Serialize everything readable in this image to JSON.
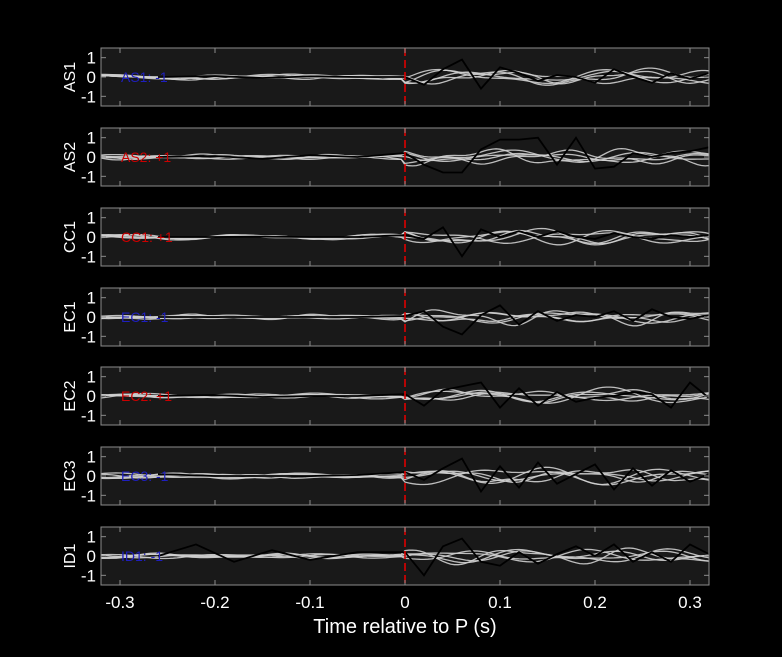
{
  "chart_data": {
    "type": "line",
    "xlabel": "Time relative to P (s)",
    "xlim": [
      -0.32,
      0.32
    ],
    "xticks": [
      -0.3,
      -0.2,
      -0.1,
      0,
      0.1,
      0.2,
      0.3
    ],
    "xtick_labels": [
      "-0.3",
      "-0.2",
      "-0.1",
      "0",
      "0.1",
      "0.2",
      "0.3"
    ],
    "ylim": [
      -1.5,
      1.5
    ],
    "yticks": [
      1,
      0,
      -1
    ],
    "ytick_labels": [
      "1",
      "0",
      "-1"
    ],
    "marker_x": 0,
    "colors": {
      "background": "#000000",
      "axes_face": "#191919",
      "axes_edge": "#8c8c8c",
      "trace": "#000000",
      "ensemble": "#cfcfcf",
      "marker": "#dd0000",
      "positive": "#cc0000",
      "negative": "#1f1fbf"
    },
    "panels": [
      {
        "ylabel": "AS1",
        "annotation": "AS1: -1",
        "polarity": "negative",
        "trace_x": [
          -0.26,
          -0.2,
          -0.15,
          -0.1,
          -0.05,
          0,
          0.02,
          0.04,
          0.06,
          0.08,
          0.1,
          0.12,
          0.14,
          0.16,
          0.18,
          0.2,
          0.22,
          0.24,
          0.26,
          0.28,
          0.3,
          0.32
        ],
        "trace_y": [
          0,
          0.05,
          -0.05,
          0.03,
          0,
          0,
          -0.4,
          0.4,
          0.9,
          -0.6,
          0.5,
          0.2,
          -0.2,
          0.1,
          0,
          -0.3,
          0.4,
          0,
          -0.3,
          0.2,
          -0.1,
          0.2
        ]
      },
      {
        "ylabel": "AS2",
        "annotation": "AS2: +1",
        "polarity": "positive",
        "trace_x": [
          -0.26,
          -0.2,
          -0.15,
          -0.1,
          -0.05,
          0,
          0.02,
          0.04,
          0.06,
          0.08,
          0.1,
          0.12,
          0.14,
          0.16,
          0.18,
          0.2,
          0.22,
          0.24,
          0.26,
          0.28,
          0.3,
          0.32
        ],
        "trace_y": [
          0,
          0.05,
          -0.1,
          0.1,
          0,
          0.2,
          -0.4,
          -0.8,
          -0.8,
          0.4,
          0.9,
          0.9,
          1.0,
          -0.4,
          1.0,
          -0.6,
          -0.5,
          0.2,
          0,
          0.2,
          0.3,
          0.5
        ]
      },
      {
        "ylabel": "CC1",
        "annotation": "CC1: +1",
        "polarity": "positive",
        "trace_x": [
          -0.26,
          -0.2,
          -0.15,
          -0.1,
          -0.05,
          0,
          0.02,
          0.04,
          0.06,
          0.08,
          0.1,
          0.12,
          0.14,
          0.16,
          0.18,
          0.2,
          0.22,
          0.24,
          0.26,
          0.28,
          0.3,
          0.32
        ],
        "trace_y": [
          0,
          0,
          0.02,
          0,
          0,
          0.1,
          -0.1,
          0.5,
          -1.0,
          0.4,
          0,
          0.3,
          0,
          0.3,
          0,
          -0.1,
          0.2,
          0,
          -0.1,
          0.1,
          0,
          0.1
        ]
      },
      {
        "ylabel": "EC1",
        "annotation": "EC1: -1",
        "polarity": "negative",
        "trace_x": [
          -0.26,
          -0.2,
          -0.15,
          -0.1,
          -0.05,
          0,
          0.02,
          0.04,
          0.06,
          0.08,
          0.1,
          0.12,
          0.14,
          0.16,
          0.18,
          0.2,
          0.22,
          0.24,
          0.26,
          0.28,
          0.3,
          0.32
        ],
        "trace_y": [
          0,
          0,
          0,
          0,
          0,
          0.05,
          0.3,
          -0.5,
          -0.9,
          0.1,
          0.6,
          -0.4,
          0.3,
          -0.2,
          0.1,
          0,
          0.3,
          -0.2,
          0.4,
          0,
          -0.1,
          0.1
        ]
      },
      {
        "ylabel": "EC2",
        "annotation": "EC2: +1",
        "polarity": "positive",
        "trace_x": [
          -0.26,
          -0.2,
          -0.15,
          -0.1,
          -0.05,
          0,
          0.02,
          0.04,
          0.06,
          0.08,
          0.1,
          0.12,
          0.14,
          0.16,
          0.18,
          0.2,
          0.22,
          0.24,
          0.26,
          0.28,
          0.3,
          0.32
        ],
        "trace_y": [
          0,
          0.05,
          -0.05,
          0,
          0,
          0.1,
          -0.5,
          0.3,
          0.5,
          0.7,
          -0.6,
          0.4,
          -0.5,
          0.2,
          -0.3,
          -0.1,
          0,
          0.2,
          0.1,
          -0.6,
          0.7,
          -0.1
        ]
      },
      {
        "ylabel": "EC3",
        "annotation": "EC3: -1",
        "polarity": "negative",
        "trace_x": [
          -0.26,
          -0.2,
          -0.15,
          -0.1,
          -0.05,
          0,
          0.02,
          0.04,
          0.06,
          0.08,
          0.1,
          0.12,
          0.14,
          0.16,
          0.18,
          0.2,
          0.22,
          0.24,
          0.26,
          0.28,
          0.3,
          0.32
        ],
        "trace_y": [
          0.1,
          0,
          0,
          0,
          0.05,
          0.2,
          -0.2,
          0.4,
          0.9,
          -0.8,
          0.5,
          -0.6,
          0.7,
          -0.4,
          0.1,
          0.6,
          -0.7,
          0.4,
          -0.5,
          0.3,
          -0.3,
          0.1
        ]
      },
      {
        "ylabel": "ID1",
        "annotation": "ID1: -1",
        "polarity": "negative",
        "trace_x": [
          -0.26,
          -0.22,
          -0.18,
          -0.14,
          -0.1,
          -0.05,
          0,
          0.02,
          0.04,
          0.06,
          0.08,
          0.1,
          0.12,
          0.14,
          0.16,
          0.18,
          0.2,
          0.22,
          0.24,
          0.26,
          0.28,
          0.3,
          0.32
        ],
        "trace_y": [
          0,
          0.6,
          -0.3,
          0.3,
          -0.2,
          0.2,
          0.2,
          -1.0,
          0.5,
          0.9,
          -0.3,
          -0.5,
          0.2,
          -0.4,
          0.1,
          0.5,
          0,
          0.6,
          -0.3,
          0.2,
          -0.3,
          0.6,
          0.1
        ]
      }
    ]
  }
}
